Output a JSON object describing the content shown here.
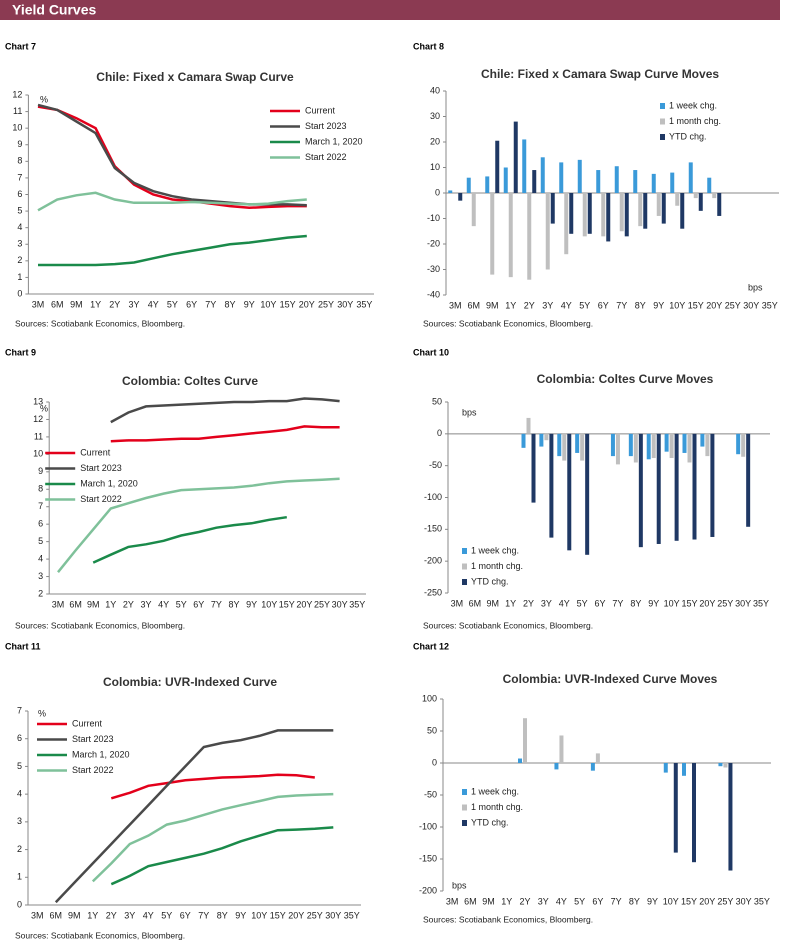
{
  "header": {
    "title": "Yield Curves"
  },
  "chart_data": [
    {
      "type": "line",
      "label": "Chart 7",
      "title": "Chile: Fixed x Camara Swap Curve",
      "y_unit": "%",
      "source": "Sources: Scotiabank Economics, Bloomberg.",
      "legend": "upper right",
      "categories": [
        "3M",
        "6M",
        "9M",
        "1Y",
        "2Y",
        "3Y",
        "4Y",
        "5Y",
        "6Y",
        "7Y",
        "8Y",
        "9Y",
        "10Y",
        "15Y",
        "20Y",
        "25Y",
        "30Y",
        "35Y"
      ],
      "ylim": [
        0,
        12
      ],
      "yticks": [
        0,
        1,
        2,
        3,
        4,
        5,
        6,
        7,
        8,
        9,
        10,
        11,
        12
      ],
      "series": [
        {
          "name": "Current",
          "color": "#e3001b",
          "values": [
            11.3,
            11.1,
            10.6,
            10.0,
            7.7,
            6.6,
            6.0,
            5.7,
            5.6,
            5.45,
            5.3,
            5.2,
            5.25,
            5.3,
            5.3,
            null,
            null,
            null
          ]
        },
        {
          "name": "Start 2023",
          "color": "#4a4a4a",
          "values": [
            11.4,
            11.1,
            10.4,
            9.7,
            7.6,
            6.7,
            6.2,
            5.9,
            5.7,
            5.6,
            5.5,
            5.4,
            5.4,
            5.4,
            5.35,
            null,
            null,
            null
          ]
        },
        {
          "name": "March 1, 2020",
          "color": "#1a8a4a",
          "values": [
            1.75,
            1.75,
            1.75,
            1.75,
            1.8,
            1.9,
            2.15,
            2.4,
            2.6,
            2.8,
            3.0,
            3.1,
            3.25,
            3.4,
            3.5,
            null,
            null,
            null
          ]
        },
        {
          "name": "Start 2022",
          "color": "#7fc19a",
          "values": [
            5.05,
            5.7,
            5.95,
            6.1,
            5.7,
            5.5,
            5.5,
            5.5,
            5.55,
            5.5,
            5.45,
            5.4,
            5.45,
            5.6,
            5.7,
            null,
            null,
            null
          ]
        }
      ]
    },
    {
      "type": "bar",
      "label": "Chart 8",
      "title": "Chile: Fixed x Camara Swap Curve Moves",
      "y_unit": "bps",
      "source": "Sources: Scotiabank Economics, Bloomberg.",
      "legend": "upper right",
      "categories": [
        "3M",
        "6M",
        "9M",
        "1Y",
        "2Y",
        "3Y",
        "4Y",
        "5Y",
        "6Y",
        "7Y",
        "8Y",
        "9Y",
        "10Y",
        "15Y",
        "20Y",
        "25Y",
        "30Y",
        "35Y"
      ],
      "ylim": [
        -40,
        40
      ],
      "yticks": [
        -40,
        -30,
        -20,
        -10,
        0,
        10,
        20,
        30,
        40
      ],
      "series": [
        {
          "name": "1 week chg.",
          "color": "#3a9ad9",
          "values": [
            1,
            6,
            6.5,
            10,
            21,
            14,
            12,
            13,
            9,
            10.5,
            9,
            7.5,
            8,
            12,
            6,
            null,
            null,
            null
          ]
        },
        {
          "name": "1 month chg.",
          "color": "#bfbfbf",
          "values": [
            0,
            -13,
            -32,
            -33,
            -34,
            -30,
            -24,
            -17,
            -17,
            -15,
            -13,
            -9,
            -5,
            -2,
            -2,
            null,
            null,
            null
          ]
        },
        {
          "name": "YTD chg.",
          "color": "#1f3864",
          "values": [
            -3,
            0,
            20.5,
            28,
            9,
            -12,
            -16,
            -16,
            -19,
            -17,
            -14,
            -12,
            -14,
            -7,
            -9,
            null,
            null,
            null
          ]
        }
      ]
    },
    {
      "type": "line",
      "label": "Chart 9",
      "title": "Colombia: Coltes Curve",
      "y_unit": "%",
      "source": "Sources: Scotiabank Economics, Bloomberg.",
      "legend": "center left",
      "categories": [
        "3M",
        "6M",
        "9M",
        "1Y",
        "2Y",
        "3Y",
        "4Y",
        "5Y",
        "6Y",
        "7Y",
        "8Y",
        "9Y",
        "10Y",
        "15Y",
        "20Y",
        "25Y",
        "30Y",
        "35Y"
      ],
      "ylim": [
        2,
        13
      ],
      "yticks": [
        2,
        3,
        4,
        5,
        6,
        7,
        8,
        9,
        10,
        11,
        12,
        13
      ],
      "series": [
        {
          "name": "Current",
          "color": "#e3001b",
          "values": [
            null,
            null,
            null,
            10.75,
            10.8,
            10.8,
            10.85,
            10.9,
            10.9,
            11.0,
            11.1,
            11.2,
            11.3,
            11.4,
            11.6,
            11.55,
            11.55,
            null
          ]
        },
        {
          "name": "Start 2023",
          "color": "#4a4a4a",
          "values": [
            null,
            null,
            null,
            11.85,
            12.4,
            12.75,
            12.8,
            12.85,
            12.9,
            12.95,
            13.0,
            13.0,
            13.05,
            13.05,
            13.2,
            13.15,
            13.05,
            null
          ]
        },
        {
          "name": "March 1, 2020",
          "color": "#1a8a4a",
          "values": [
            null,
            null,
            3.8,
            4.25,
            4.7,
            4.85,
            5.05,
            5.35,
            5.55,
            5.8,
            5.95,
            6.05,
            6.25,
            6.4,
            null,
            null,
            null,
            null
          ]
        },
        {
          "name": "Start 2022",
          "color": "#7fc19a",
          "values": [
            3.25,
            4.5,
            5.7,
            6.9,
            7.2,
            7.5,
            7.75,
            7.95,
            8.0,
            8.05,
            8.1,
            8.2,
            8.35,
            8.45,
            8.5,
            8.55,
            8.6,
            null
          ]
        }
      ]
    },
    {
      "type": "bar",
      "label": "Chart 10",
      "title": "Colombia: Coltes Curve Moves",
      "y_unit": "bps",
      "source": "Sources: Scotiabank Economics, Bloomberg.",
      "legend": "lower left",
      "categories": [
        "3M",
        "6M",
        "9M",
        "1Y",
        "2Y",
        "3Y",
        "4Y",
        "5Y",
        "6Y",
        "7Y",
        "8Y",
        "9Y",
        "10Y",
        "15Y",
        "20Y",
        "25Y",
        "30Y",
        "35Y"
      ],
      "ylim": [
        -250,
        50
      ],
      "yticks": [
        -250,
        -200,
        -150,
        -100,
        -50,
        0,
        50
      ],
      "series": [
        {
          "name": "1 week chg.",
          "color": "#3a9ad9",
          "values": [
            null,
            null,
            null,
            null,
            -22,
            -20,
            -35,
            -30,
            null,
            -35,
            -35,
            -40,
            -28,
            -30,
            -20,
            null,
            -32,
            null
          ]
        },
        {
          "name": "1 month chg.",
          "color": "#bfbfbf",
          "values": [
            null,
            null,
            null,
            null,
            25,
            -10,
            -42,
            -42,
            null,
            -48,
            -45,
            -38,
            -38,
            -45,
            -35,
            null,
            -36,
            null
          ]
        },
        {
          "name": "YTD chg.",
          "color": "#1f3864",
          "values": [
            null,
            null,
            null,
            null,
            -108,
            -163,
            -183,
            -190,
            null,
            null,
            -178,
            -173,
            -168,
            -166,
            -162,
            null,
            -146,
            null
          ]
        }
      ]
    },
    {
      "type": "line",
      "label": "Chart 11",
      "title": "Colombia: UVR-Indexed Curve",
      "y_unit": "%",
      "source": "Sources: Scotiabank Economics, Bloomberg.",
      "legend": "upper left",
      "categories": [
        "3M",
        "6M",
        "9M",
        "1Y",
        "2Y",
        "3Y",
        "4Y",
        "5Y",
        "6Y",
        "7Y",
        "8Y",
        "9Y",
        "10Y",
        "15Y",
        "20Y",
        "25Y",
        "30Y",
        "35Y"
      ],
      "ylim": [
        0,
        7
      ],
      "yticks": [
        0,
        1,
        2,
        3,
        4,
        5,
        6,
        7
      ],
      "series": [
        {
          "name": "Current",
          "color": "#e3001b",
          "values": [
            null,
            null,
            null,
            null,
            3.85,
            4.05,
            4.3,
            4.4,
            4.5,
            4.55,
            4.6,
            4.62,
            4.65,
            4.7,
            4.68,
            4.6,
            null,
            null
          ]
        },
        {
          "name": "Start 2023",
          "color": "#4a4a4a",
          "values": [
            null,
            0.1,
            0.8,
            1.5,
            2.2,
            2.9,
            3.6,
            4.3,
            5.0,
            5.7,
            5.85,
            5.95,
            6.1,
            6.3,
            6.3,
            6.3,
            6.3,
            null
          ]
        },
        {
          "name": "March 1, 2020",
          "color": "#1a8a4a",
          "values": [
            null,
            null,
            null,
            null,
            0.75,
            1.05,
            1.4,
            1.55,
            1.7,
            1.85,
            2.05,
            2.3,
            2.5,
            2.7,
            2.72,
            2.75,
            2.8,
            null
          ]
        },
        {
          "name": "Start 2022",
          "color": "#7fc19a",
          "values": [
            null,
            null,
            null,
            0.85,
            1.5,
            2.2,
            2.5,
            2.9,
            3.05,
            3.25,
            3.45,
            3.6,
            3.75,
            3.9,
            3.95,
            3.98,
            4.0,
            null
          ]
        }
      ]
    },
    {
      "type": "bar",
      "label": "Chart 12",
      "title": "Colombia: UVR-Indexed Curve Moves",
      "y_unit": "bps",
      "source": "Sources: Scotiabank Economics, Bloomberg.",
      "legend": "lower left",
      "categories": [
        "3M",
        "6M",
        "9M",
        "1Y",
        "2Y",
        "3Y",
        "4Y",
        "5Y",
        "6Y",
        "7Y",
        "8Y",
        "9Y",
        "10Y",
        "15Y",
        "20Y",
        "25Y",
        "30Y",
        "35Y"
      ],
      "ylim": [
        -200,
        100
      ],
      "yticks": [
        -200,
        -150,
        -100,
        -50,
        0,
        50,
        100
      ],
      "series": [
        {
          "name": "1 week chg.",
          "color": "#3a9ad9",
          "values": [
            null,
            null,
            null,
            null,
            7,
            null,
            -10,
            null,
            -12,
            null,
            null,
            null,
            -15,
            -20,
            null,
            -5,
            null,
            null
          ]
        },
        {
          "name": "1 month chg.",
          "color": "#bfbfbf",
          "values": [
            null,
            null,
            null,
            null,
            70,
            null,
            43,
            null,
            15,
            null,
            null,
            null,
            null,
            null,
            null,
            -7,
            null,
            null
          ]
        },
        {
          "name": "YTD chg.",
          "color": "#1f3864",
          "values": [
            null,
            null,
            null,
            null,
            null,
            null,
            null,
            null,
            null,
            null,
            null,
            null,
            -140,
            -155,
            null,
            -168,
            null,
            null
          ]
        }
      ]
    }
  ]
}
